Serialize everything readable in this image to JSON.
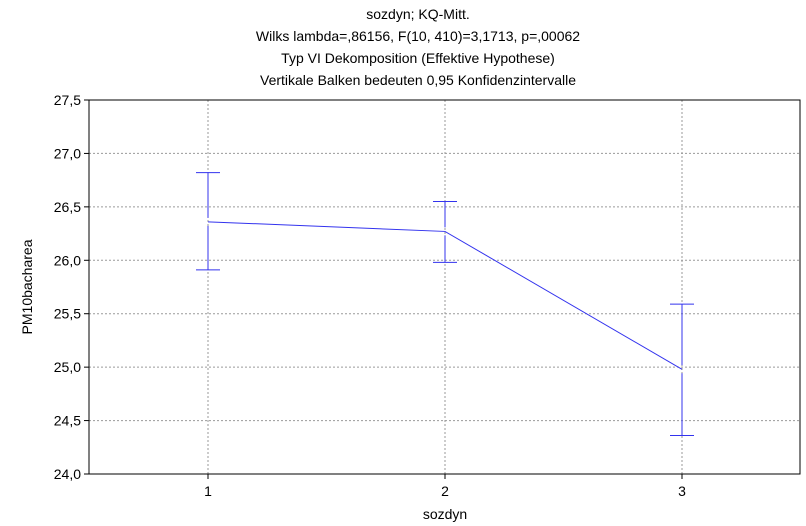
{
  "chart_data": {
    "type": "line",
    "title": "sozdyn; KQ-Mitt.",
    "subtitle_lines": [
      "Wilks lambda=,86156, F(10, 410)=3,1713, p=,00062",
      "Typ VI Dekomposition (Effektive Hypothese)",
      "Vertikale Balken bedeuten 0,95 Konfidenzintervalle"
    ],
    "xlabel": "sozdyn",
    "ylabel": "PM10bacharea",
    "categories": [
      "1",
      "2",
      "3"
    ],
    "x_tick_labels": [
      "1",
      "2",
      "3"
    ],
    "y_tick_labels": [
      "24,0",
      "24,5",
      "25,0",
      "25,5",
      "26,0",
      "26,5",
      "27,0",
      "27,5"
    ],
    "ylim": [
      24.0,
      27.5
    ],
    "y_ticks": [
      24.0,
      24.5,
      25.0,
      25.5,
      26.0,
      26.5,
      27.0,
      27.5
    ],
    "grid": true,
    "series": [
      {
        "values": [
          26.36,
          26.27,
          24.98
        ],
        "ci_lower": [
          25.91,
          25.98,
          24.36
        ],
        "ci_upper": [
          26.82,
          26.55,
          25.59
        ]
      }
    ],
    "colors": {
      "line": "#3333ee",
      "grid": "#9a9a9a",
      "axis": "#000000"
    }
  }
}
